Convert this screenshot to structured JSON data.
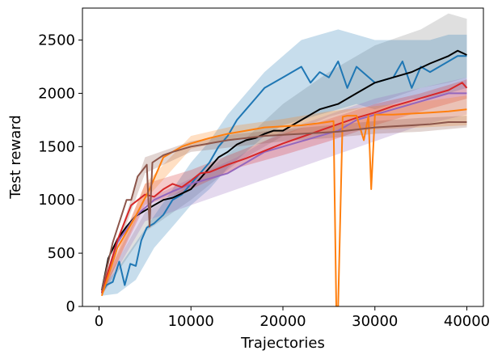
{
  "chart_data": {
    "type": "line",
    "title": "",
    "xlabel": "Trajectories",
    "ylabel": "Test reward",
    "xlim": [
      -1800,
      41800
    ],
    "ylim": [
      0,
      2800
    ],
    "xticks": [
      0,
      10000,
      20000,
      30000,
      40000
    ],
    "yticks": [
      0,
      500,
      1000,
      1500,
      2000,
      2500
    ],
    "xtick_labels": [
      "0",
      "10000",
      "20000",
      "30000",
      "40000"
    ],
    "ytick_labels": [
      "0",
      "500",
      "1000",
      "1500",
      "2000",
      "2500"
    ],
    "grid": false,
    "legend": "none",
    "series": [
      {
        "name": "grey",
        "color": "#7f7f7f",
        "mean_x": [],
        "mean_y": [],
        "band_x": [
          500,
          5000,
          10000,
          15000,
          20000,
          25000,
          30000,
          35000,
          38000,
          40000
        ],
        "band_low": [
          130,
          700,
          1000,
          1350,
          1600,
          1780,
          1900,
          2050,
          2100,
          2150
        ],
        "band_high": [
          200,
          880,
          1150,
          1500,
          1900,
          2200,
          2450,
          2600,
          2750,
          2700
        ]
      },
      {
        "name": "blue",
        "color": "#1f77b4",
        "mean_x": [
          300,
          800,
          1500,
          2200,
          2800,
          3400,
          4000,
          4600,
          5200,
          6000,
          7000,
          8000,
          9000,
          10000,
          11000,
          12000,
          13000,
          14000,
          15000,
          16000,
          17000,
          18000,
          19000,
          20000,
          22000,
          23000,
          24000,
          25000,
          26000,
          27000,
          28000,
          30000,
          32000,
          33000,
          34000,
          35000,
          36000,
          38000,
          39000,
          40000
        ],
        "mean_y": [
          130,
          200,
          230,
          420,
          200,
          400,
          380,
          620,
          740,
          780,
          860,
          1000,
          1050,
          1150,
          1250,
          1350,
          1500,
          1600,
          1750,
          1850,
          1950,
          2050,
          2100,
          2150,
          2250,
          2100,
          2200,
          2150,
          2300,
          2050,
          2250,
          2100,
          2150,
          2300,
          2050,
          2250,
          2200,
          2300,
          2350,
          2350
        ],
        "band_x": [
          300,
          2000,
          4000,
          6000,
          8000,
          10000,
          12000,
          14000,
          16000,
          18000,
          20000,
          22000,
          24000,
          26000,
          28000,
          30000,
          32000,
          34000,
          36000,
          38000,
          40000
        ],
        "band_low": [
          100,
          120,
          250,
          550,
          750,
          950,
          1100,
          1300,
          1450,
          1600,
          1700,
          1750,
          1800,
          1850,
          1900,
          1850,
          1900,
          1950,
          1950,
          2000,
          2050
        ],
        "band_high": [
          180,
          350,
          600,
          850,
          1100,
          1350,
          1550,
          1800,
          2000,
          2200,
          2350,
          2500,
          2550,
          2600,
          2550,
          2500,
          2500,
          2500,
          2500,
          2550,
          2550
        ]
      },
      {
        "name": "black",
        "color": "#000000",
        "mean_x": [
          300,
          1000,
          2000,
          3000,
          4000,
          5000,
          6000,
          7000,
          8000,
          9000,
          10000,
          11000,
          12000,
          13000,
          14000,
          15000,
          16000,
          17000,
          18000,
          19000,
          20000,
          22000,
          24000,
          26000,
          28000,
          30000,
          32000,
          34000,
          36000,
          38000,
          39000,
          40000
        ],
        "mean_y": [
          150,
          450,
          630,
          750,
          850,
          900,
          950,
          1000,
          1020,
          1060,
          1100,
          1200,
          1300,
          1400,
          1450,
          1520,
          1560,
          1580,
          1620,
          1650,
          1650,
          1750,
          1850,
          1900,
          2000,
          2100,
          2150,
          2200,
          2280,
          2350,
          2400,
          2360
        ]
      },
      {
        "name": "purple",
        "color": "#9467bd",
        "mean_x": [
          300,
          2000,
          4000,
          6000,
          8000,
          10000,
          12000,
          14000,
          16000,
          18000,
          20000,
          22000,
          24000,
          26000,
          28000,
          30000,
          32000,
          34000,
          36000,
          38000,
          40000
        ],
        "mean_y": [
          120,
          600,
          850,
          1000,
          1080,
          1150,
          1200,
          1250,
          1350,
          1450,
          1500,
          1550,
          1600,
          1650,
          1750,
          1800,
          1850,
          1900,
          1950,
          2000,
          2000
        ],
        "band_x": [
          300,
          5000,
          10000,
          15000,
          20000,
          25000,
          30000,
          35000,
          40000
        ],
        "band_low": [
          100,
          800,
          950,
          1100,
          1250,
          1400,
          1550,
          1700,
          1800
        ],
        "band_high": [
          200,
          1000,
          1200,
          1400,
          1650,
          1800,
          1950,
          2050,
          2150
        ]
      },
      {
        "name": "red",
        "color": "#d62728",
        "mean_x": [
          300,
          2000,
          3500,
          5000,
          6000,
          7000,
          8000,
          9000,
          10000,
          11000,
          12000,
          14000,
          16000,
          18000,
          20000,
          22000,
          24000,
          26000,
          28000,
          30000,
          32000,
          34000,
          36000,
          38000,
          39500,
          40000
        ],
        "mean_y": [
          130,
          620,
          950,
          1050,
          1030,
          1100,
          1150,
          1120,
          1180,
          1250,
          1260,
          1330,
          1390,
          1460,
          1530,
          1590,
          1650,
          1710,
          1770,
          1820,
          1880,
          1930,
          1980,
          2030,
          2100,
          2050
        ],
        "band_x": [
          300,
          5000,
          10000,
          15000,
          20000,
          25000,
          30000,
          35000,
          40000
        ],
        "band_low": [
          110,
          950,
          1100,
          1300,
          1420,
          1550,
          1700,
          1830,
          1950
        ],
        "band_high": [
          160,
          1150,
          1280,
          1450,
          1620,
          1760,
          1900,
          2000,
          2130
        ]
      },
      {
        "name": "orange",
        "color": "#ff7f0e",
        "mean_x": [
          300,
          2000,
          4000,
          5500,
          6500,
          7000,
          8000,
          9000,
          10000,
          12000,
          14000,
          16000,
          18000,
          20000,
          22000,
          24000,
          25500,
          25800,
          26000,
          26500,
          27000,
          28000,
          28800,
          29300,
          29600,
          30000,
          32000,
          34000,
          36000,
          38000,
          40000
        ],
        "mean_y": [
          100,
          550,
          850,
          1100,
          1300,
          1400,
          1450,
          1500,
          1530,
          1580,
          1620,
          1650,
          1680,
          1690,
          1700,
          1720,
          1740,
          0,
          0,
          1780,
          1790,
          1790,
          1560,
          1790,
          1100,
          1800,
          1800,
          1810,
          1820,
          1830,
          1850
        ],
        "band_x": [
          300,
          5000,
          10000,
          15000,
          20000,
          25000,
          30000,
          35000,
          40000
        ],
        "band_low": [
          90,
          1000,
          1480,
          1580,
          1620,
          1640,
          1660,
          1680,
          1700
        ],
        "band_high": [
          130,
          1150,
          1600,
          1700,
          1760,
          1830,
          1880,
          1920,
          1980
        ]
      },
      {
        "name": "brown",
        "color": "#8c564b",
        "mean_x": [
          300,
          1500,
          3000,
          3500,
          4200,
          5200,
          5500,
          5800,
          7000,
          8000,
          10000,
          12000,
          14000,
          16000,
          18000,
          20000,
          22000,
          24000,
          26000,
          28000,
          30000,
          32000,
          34000,
          36000,
          38000,
          40000
        ],
        "mean_y": [
          150,
          600,
          1000,
          1000,
          1220,
          1330,
          750,
          1350,
          1420,
          1450,
          1500,
          1530,
          1560,
          1580,
          1600,
          1610,
          1620,
          1630,
          1640,
          1660,
          1680,
          1690,
          1700,
          1710,
          1730,
          1730
        ],
        "band_x": [
          300,
          5000,
          10000,
          15000,
          20000,
          25000,
          30000,
          35000,
          40000
        ],
        "band_low": [
          130,
          1250,
          1450,
          1500,
          1550,
          1580,
          1620,
          1640,
          1680
        ],
        "band_high": [
          180,
          1400,
          1550,
          1620,
          1660,
          1700,
          1740,
          1770,
          1790
        ]
      }
    ]
  }
}
